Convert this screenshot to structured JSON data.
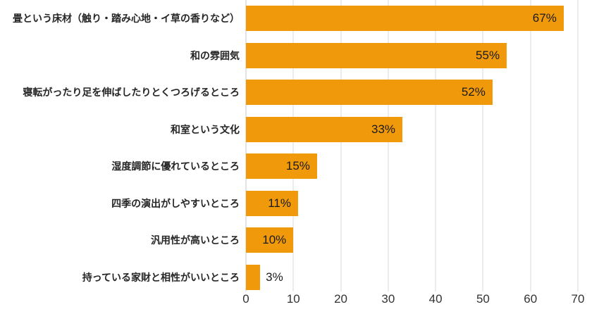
{
  "chart_data": {
    "type": "bar",
    "orientation": "horizontal",
    "title": "",
    "xlabel": "",
    "ylabel": "",
    "categories": [
      "畳という床材（触り・踏み心地・イ草の香りなど）",
      "和の雰囲気",
      "寝転がったり足を伸ばしたりとくつろげるところ",
      "和室という文化",
      "湿度調節に優れているところ",
      "四季の演出がしやすいところ",
      "汎用性が高いところ",
      "持っている家財と相性がいいところ"
    ],
    "values": [
      67,
      55,
      52,
      33,
      15,
      11,
      10,
      3
    ],
    "value_labels": [
      "67%",
      "55%",
      "52%",
      "33%",
      "15%",
      "11%",
      "10%",
      "3%"
    ],
    "xlim": [
      0,
      70
    ],
    "x_ticks": [
      0,
      10,
      20,
      30,
      40,
      50,
      60,
      70
    ],
    "grid": true,
    "legend": false,
    "bar_color": "#F09A0B",
    "gridline_color": "#D9D9D9",
    "axis_line_color": "#C9C9C9",
    "category_label_color": "#262626",
    "value_label_color": "#1A1A1A",
    "tick_label_color": "#333333",
    "inside_label_threshold": 8
  }
}
